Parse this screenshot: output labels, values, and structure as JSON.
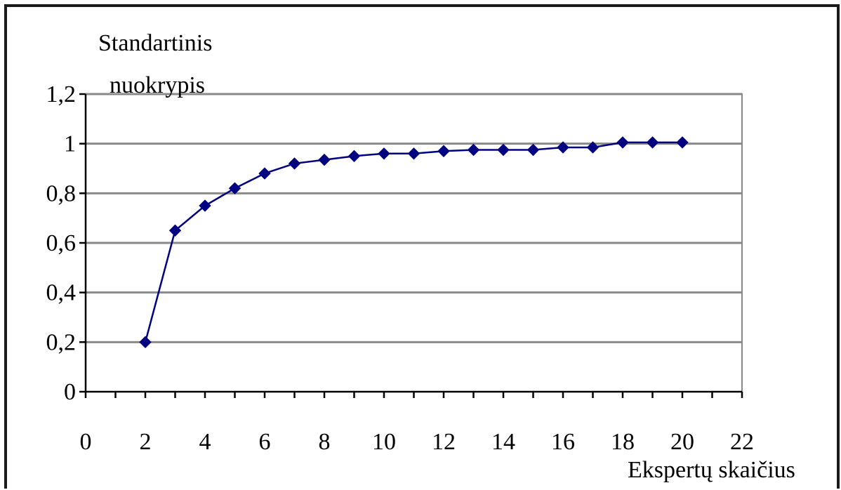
{
  "chart_data": {
    "type": "line",
    "title": "",
    "ylabel": "Standartinis nuokrypis",
    "ylabel_lines": [
      "Standartinis",
      "nuokrypis"
    ],
    "xlabel": "Ekspertų skaičius",
    "xlim": [
      0,
      22
    ],
    "ylim": [
      0,
      1.2
    ],
    "x_ticks": [
      0,
      2,
      4,
      6,
      8,
      10,
      12,
      14,
      16,
      18,
      20,
      22
    ],
    "y_ticks": [
      0,
      0.2,
      0.4,
      0.6,
      0.8,
      1,
      1.2
    ],
    "y_tick_labels": [
      "0",
      "0,2",
      "0,4",
      "0,6",
      "0,8",
      "1",
      "1,2"
    ],
    "grid": true,
    "legend": "none",
    "series": [
      {
        "color": "#000080",
        "marker": "diamond",
        "x": [
          2,
          3,
          4,
          5,
          6,
          7,
          8,
          9,
          10,
          11,
          12,
          13,
          14,
          15,
          16,
          17,
          18,
          19,
          20
        ],
        "y": [
          0.2,
          0.65,
          0.75,
          0.82,
          0.88,
          0.92,
          0.935,
          0.95,
          0.96,
          0.96,
          0.97,
          0.975,
          0.975,
          0.975,
          0.985,
          0.985,
          1.005,
          1.005,
          1.005
        ]
      }
    ]
  }
}
